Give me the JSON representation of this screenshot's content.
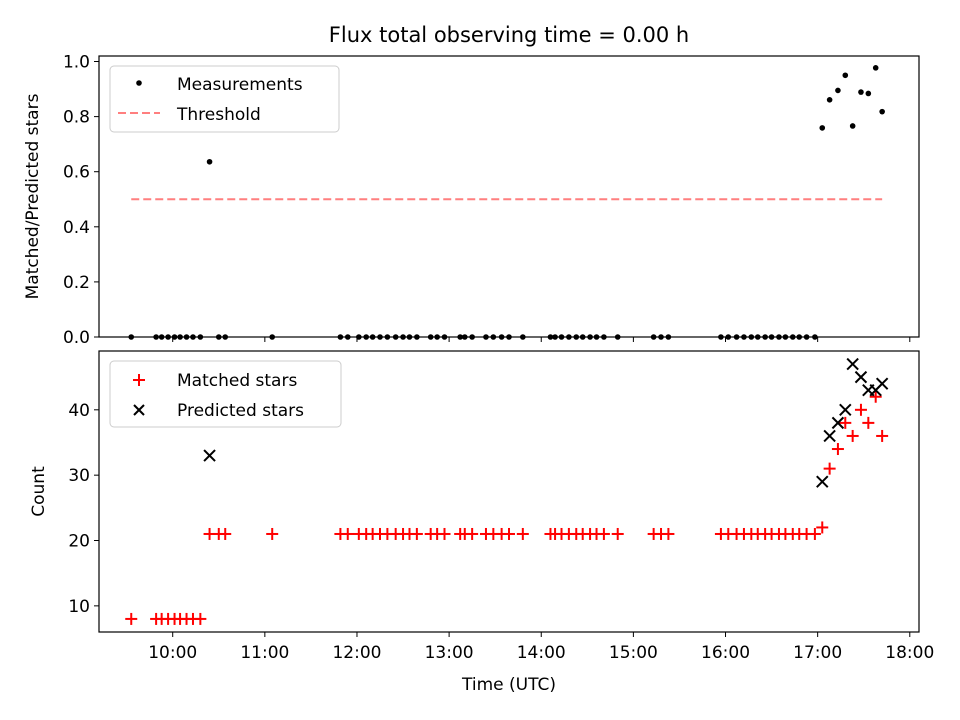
{
  "chart_data": [
    {
      "type": "scatter",
      "title": "Flux total observing time = 0.00 h",
      "ylabel": "Matched/Predicted stars",
      "xlabel": "",
      "xlim": [
        9.2,
        18.1
      ],
      "ylim": [
        0.0,
        1.02
      ],
      "yticks": [
        0.0,
        0.2,
        0.4,
        0.6,
        0.8,
        1.0
      ],
      "ytick_labels": [
        "0.0",
        "0.2",
        "0.4",
        "0.6",
        "0.8",
        "1.0"
      ],
      "legend": {
        "position": "top-left",
        "entries": [
          "Measurements",
          "Threshold"
        ]
      },
      "series": [
        {
          "name": "Measurements",
          "marker": "dot",
          "color": "#000000",
          "x": [
            9.55,
            9.82,
            9.88,
            9.95,
            10.02,
            10.08,
            10.15,
            10.22,
            10.3,
            10.4,
            10.5,
            10.57,
            11.08,
            11.82,
            11.9,
            12.02,
            12.1,
            12.17,
            12.25,
            12.33,
            12.42,
            12.5,
            12.57,
            12.65,
            12.8,
            12.87,
            12.95,
            13.12,
            13.17,
            13.25,
            13.4,
            13.48,
            13.57,
            13.65,
            13.8,
            14.1,
            14.15,
            14.22,
            14.3,
            14.38,
            14.45,
            14.53,
            14.6,
            14.68,
            14.83,
            15.22,
            15.3,
            15.38,
            15.95,
            16.03,
            16.12,
            16.2,
            16.28,
            16.35,
            16.43,
            16.5,
            16.58,
            16.65,
            16.73,
            16.8,
            16.88,
            16.97,
            17.05,
            17.13,
            17.22,
            17.3,
            17.38,
            17.47,
            17.55,
            17.63,
            17.7
          ],
          "y": [
            0,
            0,
            0,
            0,
            0,
            0,
            0,
            0,
            0,
            0.636,
            0,
            0,
            0,
            0,
            0,
            0,
            0,
            0,
            0,
            0,
            0,
            0,
            0,
            0,
            0,
            0,
            0,
            0,
            0,
            0,
            0,
            0,
            0,
            0,
            0,
            0,
            0,
            0,
            0,
            0,
            0,
            0,
            0,
            0,
            0,
            0,
            0,
            0,
            0,
            0,
            0,
            0,
            0,
            0,
            0,
            0,
            0,
            0,
            0,
            0,
            0,
            0,
            0.759,
            0.861,
            0.895,
            0.95,
            0.766,
            0.889,
            0.884,
            0.977,
            0.818
          ]
        },
        {
          "name": "Threshold",
          "style": "dashed",
          "color": "#ff7f7f",
          "x": [
            9.55,
            17.7
          ],
          "y": [
            0.5,
            0.5
          ]
        }
      ]
    },
    {
      "type": "scatter",
      "title": "",
      "ylabel": "Count",
      "xlabel": "Time (UTC)",
      "xlim": [
        9.2,
        18.1
      ],
      "ylim": [
        6.0,
        49.0
      ],
      "yticks": [
        10,
        20,
        30,
        40
      ],
      "ytick_labels": [
        "10",
        "20",
        "30",
        "40"
      ],
      "xticks": [
        10,
        11,
        12,
        13,
        14,
        15,
        16,
        17,
        18
      ],
      "xtick_labels": [
        "10:00",
        "11:00",
        "12:00",
        "13:00",
        "14:00",
        "15:00",
        "16:00",
        "17:00",
        "18:00"
      ],
      "legend": {
        "position": "top-left",
        "entries": [
          "Matched stars",
          "Predicted stars"
        ]
      },
      "series": [
        {
          "name": "Matched stars",
          "marker": "plus",
          "color": "#ff0000",
          "x": [
            9.55,
            9.82,
            9.88,
            9.95,
            10.02,
            10.08,
            10.15,
            10.22,
            10.3,
            10.4,
            10.5,
            10.57,
            11.08,
            11.82,
            11.9,
            12.02,
            12.1,
            12.17,
            12.25,
            12.33,
            12.42,
            12.5,
            12.57,
            12.65,
            12.8,
            12.87,
            12.95,
            13.12,
            13.17,
            13.25,
            13.4,
            13.48,
            13.57,
            13.65,
            13.8,
            14.1,
            14.15,
            14.22,
            14.3,
            14.38,
            14.45,
            14.53,
            14.6,
            14.68,
            14.83,
            15.22,
            15.3,
            15.38,
            15.95,
            16.03,
            16.12,
            16.2,
            16.28,
            16.35,
            16.43,
            16.5,
            16.58,
            16.65,
            16.73,
            16.8,
            16.88,
            16.97,
            17.05,
            17.13,
            17.22,
            17.3,
            17.38,
            17.47,
            17.55,
            17.63,
            17.7
          ],
          "y": [
            8,
            8,
            8,
            8,
            8,
            8,
            8,
            8,
            8,
            21,
            21,
            21,
            21,
            21,
            21,
            21,
            21,
            21,
            21,
            21,
            21,
            21,
            21,
            21,
            21,
            21,
            21,
            21,
            21,
            21,
            21,
            21,
            21,
            21,
            21,
            21,
            21,
            21,
            21,
            21,
            21,
            21,
            21,
            21,
            21,
            21,
            21,
            21,
            21,
            21,
            21,
            21,
            21,
            21,
            21,
            21,
            21,
            21,
            21,
            21,
            21,
            21,
            22,
            31,
            34,
            38,
            36,
            40,
            38,
            42,
            36
          ]
        },
        {
          "name": "Predicted stars",
          "marker": "x",
          "color": "#000000",
          "x": [
            10.4,
            17.05,
            17.13,
            17.22,
            17.3,
            17.38,
            17.47,
            17.55,
            17.63,
            17.7
          ],
          "y": [
            33,
            29,
            36,
            38,
            40,
            47,
            45,
            43,
            43,
            44
          ]
        }
      ]
    }
  ]
}
